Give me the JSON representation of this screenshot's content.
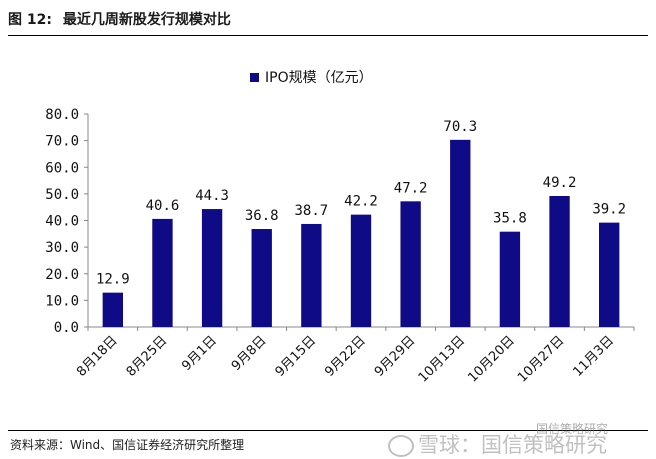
{
  "header": {
    "figure_label": "图 12:",
    "title": "最近几周新股发行规模对比"
  },
  "footer": {
    "source": "资料来源：Wind、国信证券经济研究所整理",
    "watermark_main": "雪球：国信策略研究",
    "watermark_small": "国信策略研究"
  },
  "colors": {
    "bar": "#0f0a85",
    "axis": "#888888"
  },
  "chart_data": {
    "type": "bar",
    "title": "",
    "xlabel": "",
    "ylabel": "",
    "ylim": [
      0,
      80
    ],
    "yticks": [
      "0.0",
      "10.0",
      "20.0",
      "30.0",
      "40.0",
      "50.0",
      "60.0",
      "70.0",
      "80.0"
    ],
    "grid": false,
    "legend_position": "top-center",
    "categories": [
      "8月18日",
      "8月25日",
      "9月1日",
      "9月8日",
      "9月15日",
      "9月22日",
      "9月29日",
      "10月13日",
      "10月20日",
      "10月27日",
      "11月3日"
    ],
    "series": [
      {
        "name": "IPO规模（亿元）",
        "values": [
          12.9,
          40.6,
          44.3,
          36.8,
          38.7,
          42.2,
          47.2,
          70.3,
          35.8,
          49.2,
          39.2
        ],
        "labels": [
          "12.9",
          "40.6",
          "44.3",
          "36.8",
          "38.7",
          "42.2",
          "47.2",
          "70.3",
          "35.8",
          "49.2",
          "39.2"
        ]
      }
    ]
  }
}
